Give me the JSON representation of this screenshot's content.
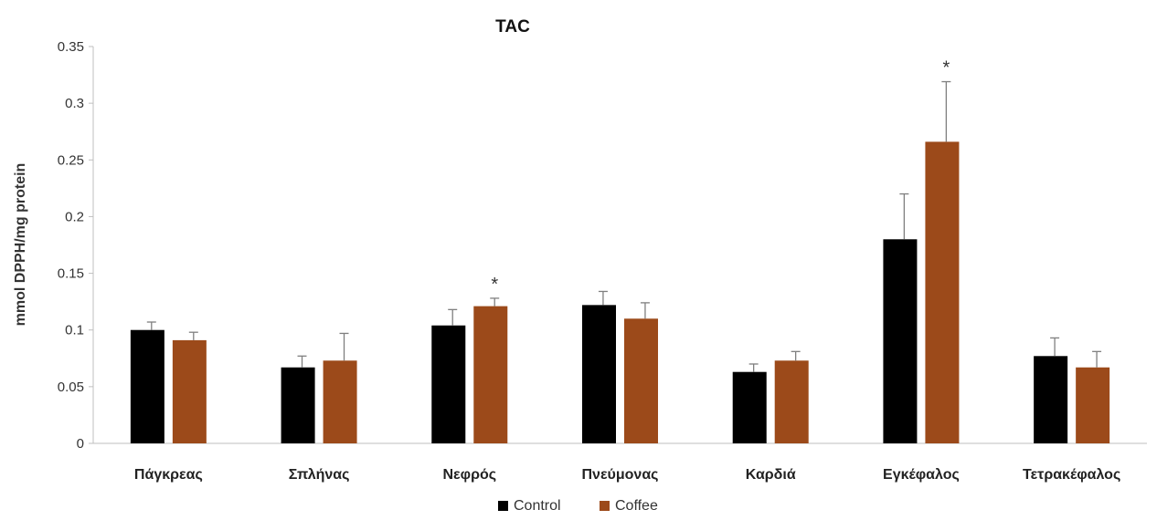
{
  "chart_data": {
    "type": "bar",
    "title": "TAC",
    "ylabel": "mmol DPPH/mg protein",
    "xlabel": "",
    "ylim": [
      0,
      0.35
    ],
    "yticks": [
      "0",
      "0.05",
      "0.1",
      "0.15",
      "0.2",
      "0.25",
      "0.3",
      "0.35"
    ],
    "ytick_values": [
      0,
      0.05,
      0.1,
      0.15,
      0.2,
      0.25,
      0.3,
      0.35
    ],
    "categories": [
      "Πάγκρεας",
      "Σπλήνας",
      "Νεφρός",
      "Πνεύμονας",
      "Καρδιά",
      "Εγκέφαλος",
      "Τετρακέφαλος"
    ],
    "series": [
      {
        "name": "Control",
        "color": "#000000",
        "values": [
          0.1,
          0.067,
          0.104,
          0.122,
          0.063,
          0.18,
          0.077
        ],
        "errors": [
          0.007,
          0.01,
          0.014,
          0.012,
          0.007,
          0.04,
          0.016
        ]
      },
      {
        "name": "Coffee",
        "color": "#9c4a1a",
        "values": [
          0.091,
          0.073,
          0.121,
          0.11,
          0.073,
          0.266,
          0.067
        ],
        "errors": [
          0.007,
          0.024,
          0.007,
          0.014,
          0.008,
          0.053,
          0.014
        ]
      }
    ],
    "significance_marker": "*",
    "significant": [
      [
        false,
        false
      ],
      [
        false,
        false
      ],
      [
        false,
        true
      ],
      [
        false,
        false
      ],
      [
        false,
        false
      ],
      [
        false,
        true
      ],
      [
        false,
        false
      ]
    ],
    "grid": false,
    "legend": "bottom-center"
  }
}
